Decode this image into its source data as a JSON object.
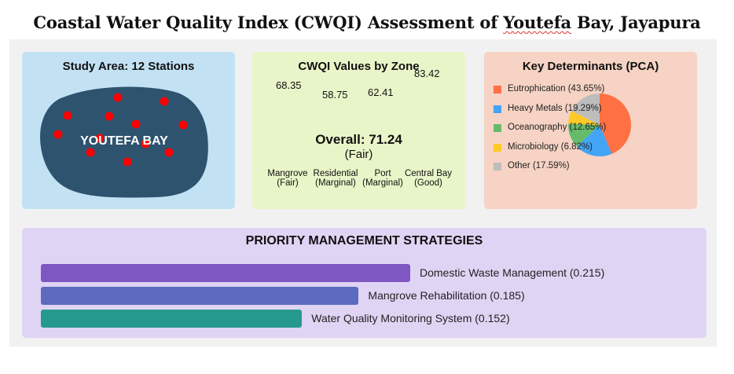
{
  "title_main": "Coastal Water Quality Index (CWQI) Assessment of ",
  "title_underlined": "Youtefa",
  "title_tail": " Bay, Jayapura",
  "panels": {
    "study_area": {
      "title": "Study Area: 12 Stations",
      "map_label": "YOUTEFA BAY",
      "bg": "#c2e2f4",
      "water": "#2d536e",
      "dot": "#ff0000"
    },
    "zones": {
      "title": "CWQI Values by Zone",
      "overall": "Overall: 71.24",
      "overall_class": "(Fair)",
      "bg": "#e8f5c8"
    },
    "pca": {
      "title": "Key Determinants (PCA)",
      "bg": "#f6d3c4"
    },
    "strategies": {
      "title": "PRIORITY MANAGEMENT STRATEGIES",
      "bg": "#e0d4f4"
    }
  },
  "chart_data": [
    {
      "type": "table",
      "title": "CWQI Values by Zone",
      "zones": [
        {
          "name": "Mangrove",
          "class": "(Fair)",
          "value": "68.35"
        },
        {
          "name": "Residential",
          "class": "(Marginal)",
          "value": "58.75"
        },
        {
          "name": "Port",
          "class": "(Marginal)",
          "value": "62.41"
        },
        {
          "name": "Central Bay",
          "class": "(Good)",
          "value": "83.42"
        }
      ]
    },
    {
      "type": "pie",
      "title": "Key Determinants (PCA)",
      "legend_placement": "left",
      "slices": [
        {
          "label": "Eutrophication (43.65%)",
          "value": 43.65,
          "color": "#ff7043"
        },
        {
          "label": "Heavy Metals (19.29%)",
          "value": 19.29,
          "color": "#42a5f5"
        },
        {
          "label": "Oceanography (12.65%)",
          "value": 12.65,
          "color": "#66bb6a"
        },
        {
          "label": "Microbiology (6.82%)",
          "value": 6.82,
          "color": "#ffca28"
        },
        {
          "label": "Other (17.59%)",
          "value": 17.59,
          "color": "#bdbdbd"
        }
      ]
    },
    {
      "type": "bar",
      "title": "PRIORITY MANAGEMENT STRATEGIES",
      "orientation": "horizontal",
      "bars": [
        {
          "label": "Domestic Waste Management (0.215)",
          "value": 0.215,
          "color": "#7e57c2"
        },
        {
          "label": "Mangrove Rehabilitation (0.185)",
          "value": 0.185,
          "color": "#5c6bc0"
        },
        {
          "label": "Water Quality Monitoring System (0.152)",
          "value": 0.152,
          "color": "#26998f"
        }
      ]
    }
  ]
}
